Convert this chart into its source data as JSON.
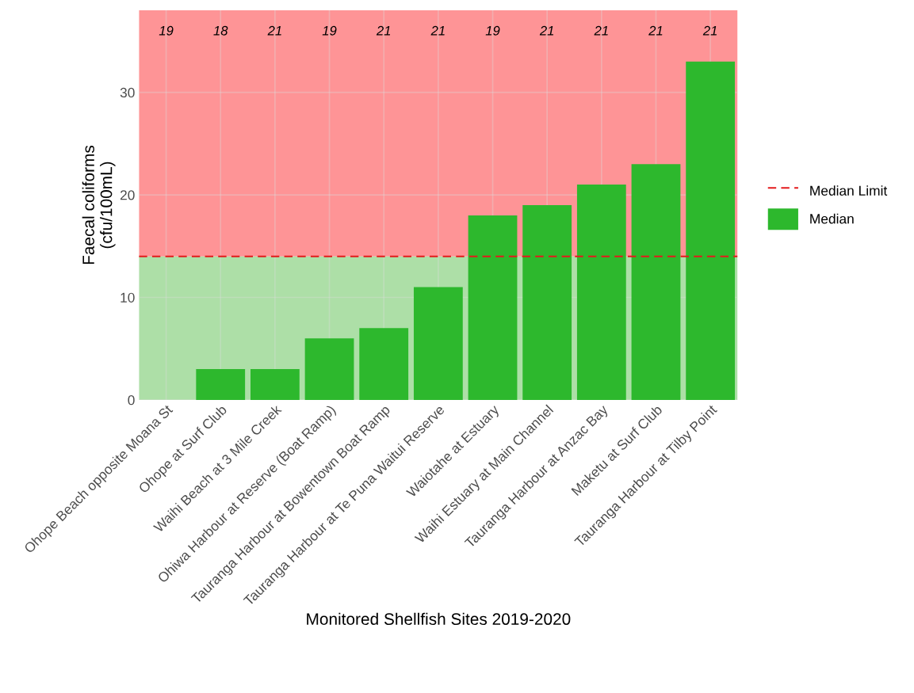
{
  "chart_data": {
    "type": "bar",
    "xlabel": "Monitored Shellfish Sites 2019-2020",
    "ylabel": "Faecal coliforms\n(cfu/100mL)",
    "categories": [
      "Ohope Beach opposite Moana St",
      "Ohope at Surf Club",
      "Waihi Beach at 3 Mile Creek",
      "Ohiwa Harbour at Reserve (Boat Ramp)",
      "Tauranga Harbour at Bowentown Boat Ramp",
      "Tauranga Harbour at Te Puna Waitui Reserve",
      "Waiotahe at Estuary",
      "Waihi Estuary at Main Channel",
      "Tauranga Harbour at Anzac Bay",
      "Maketu at Surf Club",
      "Tauranga Harbour at Tilby Point"
    ],
    "series": [
      {
        "name": "Median",
        "color": "#2db82d",
        "values": [
          0,
          3,
          3,
          6,
          7,
          11,
          18,
          19,
          21,
          23,
          33
        ]
      }
    ],
    "ylim": [
      0,
      38
    ],
    "yticks": [
      0,
      10,
      20,
      30
    ],
    "grid": true,
    "legend": "right",
    "ref_lines": [
      {
        "axis": "y",
        "value": 14,
        "label": "Median Limit",
        "color": "#e41a1c",
        "line_style": "dashed"
      }
    ],
    "bands": [
      {
        "axis": "y",
        "from": 0,
        "to": 14,
        "color": "#addfa7"
      },
      {
        "axis": "y",
        "from": 14,
        "to": 38,
        "color": "#fe9496"
      }
    ],
    "annotations": [
      "19",
      "18",
      "21",
      "19",
      "21",
      "21",
      "19",
      "21",
      "21",
      "21",
      "21"
    ]
  }
}
